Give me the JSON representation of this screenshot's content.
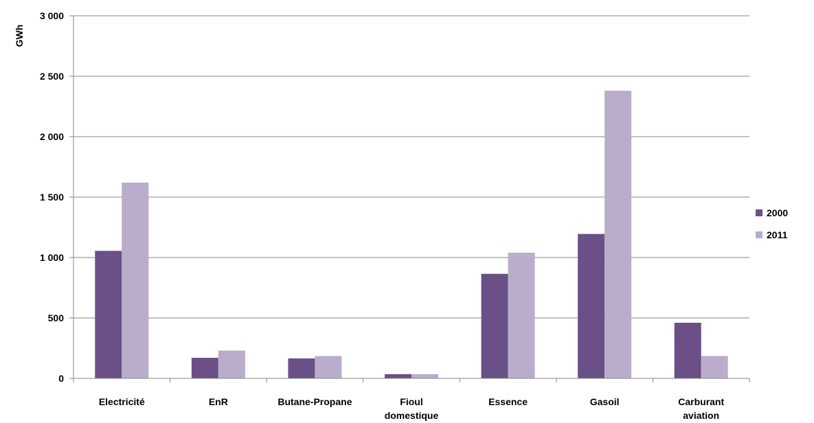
{
  "chart_data": {
    "type": "bar",
    "title": "",
    "xlabel": "",
    "ylabel": "GWh",
    "ylim": [
      0,
      3000
    ],
    "yticks": [
      0,
      500,
      1000,
      1500,
      2000,
      2500,
      3000
    ],
    "ytick_labels": [
      "0",
      "500",
      "1 000",
      "1 500",
      "2 000",
      "2 500",
      "3 000"
    ],
    "grid": true,
    "legend_position": "right",
    "categories": [
      [
        "Electricité"
      ],
      [
        "EnR"
      ],
      [
        "Butane-Propane"
      ],
      [
        "Fioul",
        "domestique"
      ],
      [
        "Essence"
      ],
      [
        "Gasoil"
      ],
      [
        "Carburant",
        "aviation"
      ]
    ],
    "series": [
      {
        "name": "2000",
        "color": "#6b5087",
        "values": [
          1055,
          170,
          165,
          35,
          865,
          1195,
          460
        ]
      },
      {
        "name": "2011",
        "color": "#b9adcb",
        "values": [
          1620,
          230,
          185,
          35,
          1040,
          2380,
          185
        ]
      }
    ]
  }
}
